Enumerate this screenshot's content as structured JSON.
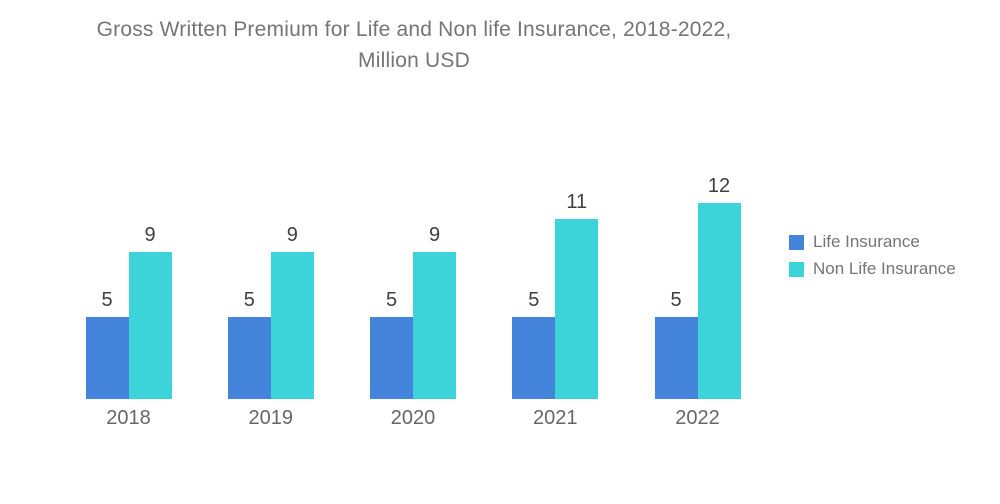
{
  "page": {
    "background": "#ffffff"
  },
  "chart_data": {
    "type": "bar",
    "title": "Gross Written Premium for Life and Non life Insurance, 2018-2022, Million USD",
    "title_lines": [
      "Gross Written Premium for Life and Non life Insurance, 2018-2022,",
      "Million USD"
    ],
    "title_color": "#757575",
    "categories": [
      "2018",
      "2019",
      "2020",
      "2021",
      "2022"
    ],
    "series": [
      {
        "name": "Life Insurance",
        "color": "#4484DB",
        "values": [
          5,
          5,
          5,
          5,
          5
        ]
      },
      {
        "name": "Non Life Insurance",
        "color": "#3CD3D9",
        "values": [
          9,
          9,
          9,
          11,
          12
        ]
      }
    ],
    "ylim": [
      0,
      12.2
    ],
    "xlabel": "",
    "ylabel": "",
    "grid": false,
    "axes_visible": false,
    "data_labels": true,
    "data_label_color": "#3F3F3F",
    "x_tick_label_color": "#666666",
    "legend_position": "right",
    "legend_text_color": "#757575"
  }
}
